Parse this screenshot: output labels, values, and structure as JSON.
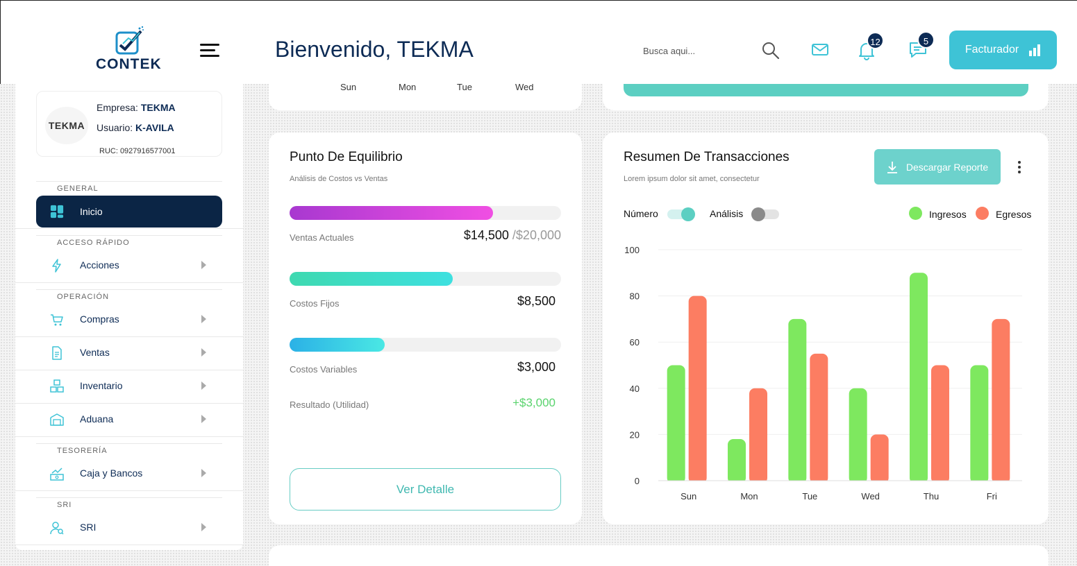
{
  "header": {
    "logo_text": "CONTEK",
    "welcome": "Bienvenido, TEKMA",
    "search_placeholder": "Busca aqui...",
    "notifications_count": "12",
    "messages_count": "5",
    "facturador_label": "Facturador"
  },
  "sidebar": {
    "company_logo_text": "TEKMA",
    "empresa_label": "Empresa:",
    "empresa_value": "TEKMA",
    "usuario_label": "Usuario:",
    "usuario_value": "K-AVILA",
    "ruc": "RUC: 0927916577001",
    "sections": {
      "general": "GENERAL",
      "acceso": "ACCESO RÁPIDO",
      "operacion": "OPERACIÓN",
      "tesoreria": "TESORERÍA",
      "sri": "SRI"
    },
    "items": {
      "inicio": "Inicio",
      "acciones": "Acciones",
      "compras": "Compras",
      "ventas": "Ventas",
      "inventario": "Inventario",
      "aduana": "Aduana",
      "caja": "Caja y Bancos",
      "sri": "SRI"
    }
  },
  "top_card": {
    "days": [
      "Sun",
      "Mon",
      "Tue",
      "Wed"
    ]
  },
  "equilibrio": {
    "title": "Punto De Equilibrio",
    "subtitle": "Análisis de Costos vs Ventas",
    "ventas": {
      "label": "Ventas Actuales",
      "value": "$14,500",
      "total": "/$20,000",
      "progress": 0.75
    },
    "fijos": {
      "label": "Costos Fijos",
      "value": "$8,500",
      "progress": 0.6
    },
    "variables": {
      "label": "Costos Variables",
      "value": "$3,000",
      "progress": 0.35
    },
    "resultado": {
      "label": "Resultado (Utilidad)",
      "value": "+$3,000"
    },
    "button": "Ver Detalle"
  },
  "transacciones": {
    "title": "Resumen De Transacciones",
    "subtitle": "Lorem ipsum dolor sit amet, consectetur",
    "download_button": "Descargar Reporte",
    "toggle_numero": "Número",
    "toggle_analisis": "Análisis",
    "numero_on": true,
    "analisis_on": false
  },
  "colors": {
    "ingresos": "#7ee85f",
    "egresos": "#fc7d62",
    "accent": "#3ec3d6",
    "navy": "#0b2545"
  },
  "chart_data": {
    "type": "bar",
    "categories": [
      "Sun",
      "Mon",
      "Tue",
      "Wed",
      "Thu",
      "Fri"
    ],
    "series": [
      {
        "name": "Ingresos",
        "values": [
          50,
          18,
          70,
          40,
          90,
          50
        ]
      },
      {
        "name": "Egresos",
        "values": [
          80,
          40,
          55,
          20,
          50,
          70
        ]
      }
    ],
    "ylim": [
      0,
      100
    ],
    "yticks": [
      0,
      20,
      40,
      60,
      80,
      100
    ],
    "title": "",
    "xlabel": "",
    "ylabel": "",
    "legend": "top-right",
    "grid": true
  }
}
